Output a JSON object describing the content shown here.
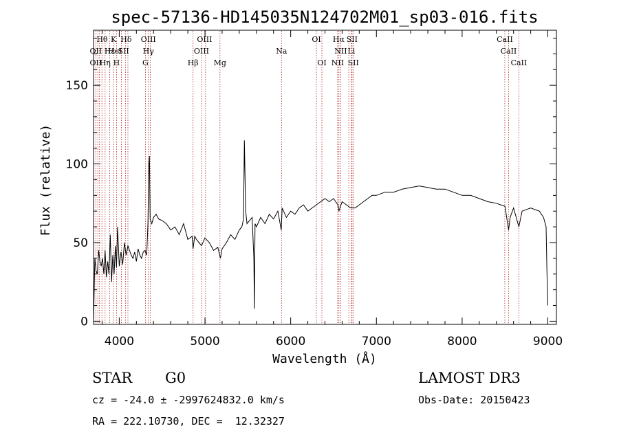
{
  "chart_data": {
    "type": "line",
    "title": "spec-57136-HD145035N124702M01_sp03-016.fits",
    "xlabel": "Wavelength (Å)",
    "ylabel": "Flux (relative)",
    "xlim": [
      3700,
      9100
    ],
    "ylim": [
      -2,
      185
    ],
    "x_ticks": [
      4000,
      5000,
      6000,
      7000,
      8000,
      9000
    ],
    "y_ticks": [
      0,
      50,
      100,
      150
    ],
    "grid": false,
    "line_color": "#000000",
    "marker_color": "#b22222",
    "series": [
      {
        "x": [
          3700,
          3715,
          3730,
          3745,
          3760,
          3775,
          3790,
          3805,
          3820,
          3835,
          3850,
          3865,
          3880,
          3895,
          3910,
          3925,
          3940,
          3955,
          3968,
          3980,
          4000,
          4020,
          4040,
          4060,
          4080,
          4101,
          4120,
          4140,
          4160,
          4180,
          4200,
          4220,
          4240,
          4260,
          4280,
          4300,
          4320,
          4335,
          4345,
          4352,
          4360,
          4380,
          4400,
          4430,
          4460,
          4500,
          4550,
          4600,
          4650,
          4700,
          4750,
          4800,
          4850,
          4861,
          4880,
          4900,
          4930,
          4960,
          5000,
          5050,
          5100,
          5150,
          5180,
          5200,
          5250,
          5300,
          5350,
          5400,
          5430,
          5450,
          5460,
          5475,
          5490,
          5520,
          5550,
          5570,
          5577,
          5584,
          5600,
          5650,
          5700,
          5750,
          5800,
          5850,
          5890,
          5900,
          5950,
          6000,
          6050,
          6100,
          6150,
          6200,
          6250,
          6300,
          6350,
          6400,
          6450,
          6500,
          6550,
          6563,
          6600,
          6650,
          6700,
          6750,
          6800,
          6850,
          6900,
          6950,
          7000,
          7100,
          7200,
          7300,
          7400,
          7500,
          7600,
          7700,
          7800,
          7900,
          8000,
          8100,
          8200,
          8300,
          8400,
          8450,
          8500,
          8542,
          8560,
          8600,
          8662,
          8700,
          8800,
          8900,
          8950,
          8980,
          8990,
          9000
        ],
        "y": [
          0,
          40,
          32,
          30,
          45,
          38,
          35,
          40,
          30,
          45,
          28,
          38,
          30,
          55,
          25,
          42,
          30,
          48,
          34,
          60,
          35,
          44,
          36,
          50,
          42,
          48,
          45,
          42,
          40,
          44,
          38,
          46,
          42,
          40,
          44,
          45,
          42,
          62,
          100,
          105,
          65,
          62,
          66,
          68,
          65,
          64,
          62,
          58,
          60,
          55,
          62,
          52,
          54,
          46,
          54,
          52,
          50,
          48,
          53,
          50,
          45,
          47,
          40,
          46,
          50,
          55,
          52,
          58,
          60,
          65,
          115,
          70,
          62,
          64,
          66,
          40,
          8,
          62,
          60,
          66,
          62,
          68,
          65,
          70,
          58,
          72,
          66,
          70,
          68,
          72,
          74,
          70,
          72,
          74,
          76,
          78,
          76,
          78,
          74,
          70,
          76,
          74,
          72,
          72,
          74,
          76,
          78,
          80,
          80,
          82,
          82,
          84,
          85,
          86,
          85,
          84,
          84,
          82,
          80,
          80,
          78,
          76,
          75,
          74,
          73,
          58,
          66,
          72,
          60,
          70,
          72,
          70,
          66,
          60,
          30,
          10
        ]
      }
    ],
    "markers": {
      "line_x": [
        3727,
        3750,
        3770,
        3798,
        3835,
        3889,
        3934,
        3968,
        4026,
        4072,
        4101,
        4305,
        4340,
        4363,
        4861,
        4959,
        5007,
        5175,
        5893,
        6300,
        6364,
        6548,
        6563,
        6584,
        6678,
        6708,
        6716,
        6731,
        8498,
        8542,
        8662
      ],
      "row1": [
        {
          "text": "Hθ",
          "x": 3800
        },
        {
          "text": "K",
          "x": 3934
        },
        {
          "text": "Hδ",
          "x": 4080
        },
        {
          "text": "OIII",
          "x": 4340
        },
        {
          "text": "OIII",
          "x": 4995
        },
        {
          "text": "OI",
          "x": 6300
        },
        {
          "text": "Hα",
          "x": 6560
        },
        {
          "text": "SII",
          "x": 6716
        },
        {
          "text": "CaII",
          "x": 8498
        }
      ],
      "row2": [
        {
          "text": "OII",
          "x": 3727
        },
        {
          "text": "Hε",
          "x": 3889
        },
        {
          "text": "HeI",
          "x": 3950
        },
        {
          "text": "SII",
          "x": 4050
        },
        {
          "text": "Hγ",
          "x": 4340
        },
        {
          "text": "OIII",
          "x": 4959
        },
        {
          "text": "Na",
          "x": 5893
        },
        {
          "text": "NII",
          "x": 6584
        },
        {
          "text": "Li",
          "x": 6708
        },
        {
          "text": "CaII",
          "x": 8542
        }
      ],
      "row3": [
        {
          "text": "OII",
          "x": 3727
        },
        {
          "text": "Hη",
          "x": 3835
        },
        {
          "text": "H",
          "x": 3968
        },
        {
          "text": "G",
          "x": 4305
        },
        {
          "text": "Hβ",
          "x": 4861
        },
        {
          "text": "Mg",
          "x": 5175
        },
        {
          "text": "OI",
          "x": 6364
        },
        {
          "text": "NII",
          "x": 6548
        },
        {
          "text": "SII",
          "x": 6731
        },
        {
          "text": "CaII",
          "x": 8662
        }
      ]
    }
  },
  "footer": {
    "object_type": "STAR",
    "subclass": "G0",
    "survey": "LAMOST DR3",
    "redshift": "cz = -24.0 ± -2997624832.0 km/s",
    "obs_date": "Obs-Date: 20150423",
    "coords": "RA = 222.10730, DEC =  12.32327"
  }
}
